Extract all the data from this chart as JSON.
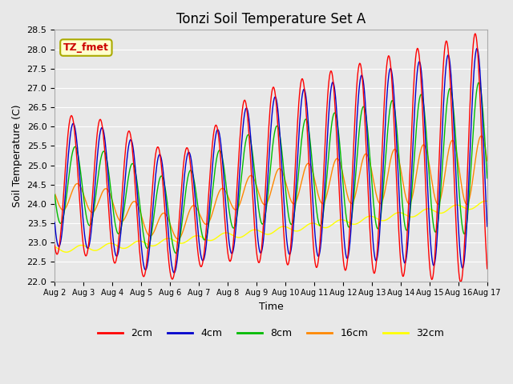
{
  "title": "Tonzi Soil Temperature Set A",
  "xlabel": "Time",
  "ylabel": "Soil Temperature (C)",
  "ylim": [
    22.0,
    28.5
  ],
  "annotation_text": "TZ_fmet",
  "annotation_box_color": "#FFFFCC",
  "annotation_text_color": "#CC0000",
  "annotation_border_color": "#AAAA00",
  "background_color": "#E8E8E8",
  "plot_bg_color": "#E8E8E8",
  "grid_color": "#FFFFFF",
  "x_tick_labels": [
    "Aug 2",
    "Aug 3",
    "Aug 4",
    "Aug 5",
    "Aug 6",
    "Aug 7",
    "Aug 8",
    "Aug 9",
    "Aug 10",
    "Aug 11",
    "Aug 12",
    "Aug 13",
    "Aug 14",
    "Aug 15",
    "Aug 16",
    "Aug 17"
  ],
  "series": {
    "2cm": {
      "color": "#FF0000",
      "linewidth": 1.0
    },
    "4cm": {
      "color": "#0000CC",
      "linewidth": 1.0
    },
    "8cm": {
      "color": "#00BB00",
      "linewidth": 1.0
    },
    "16cm": {
      "color": "#FF8800",
      "linewidth": 1.0
    },
    "32cm": {
      "color": "#FFFF00",
      "linewidth": 1.0
    }
  },
  "legend_labels": [
    "2cm",
    "4cm",
    "8cm",
    "16cm",
    "32cm"
  ],
  "days": 15,
  "title_fontsize": 12
}
